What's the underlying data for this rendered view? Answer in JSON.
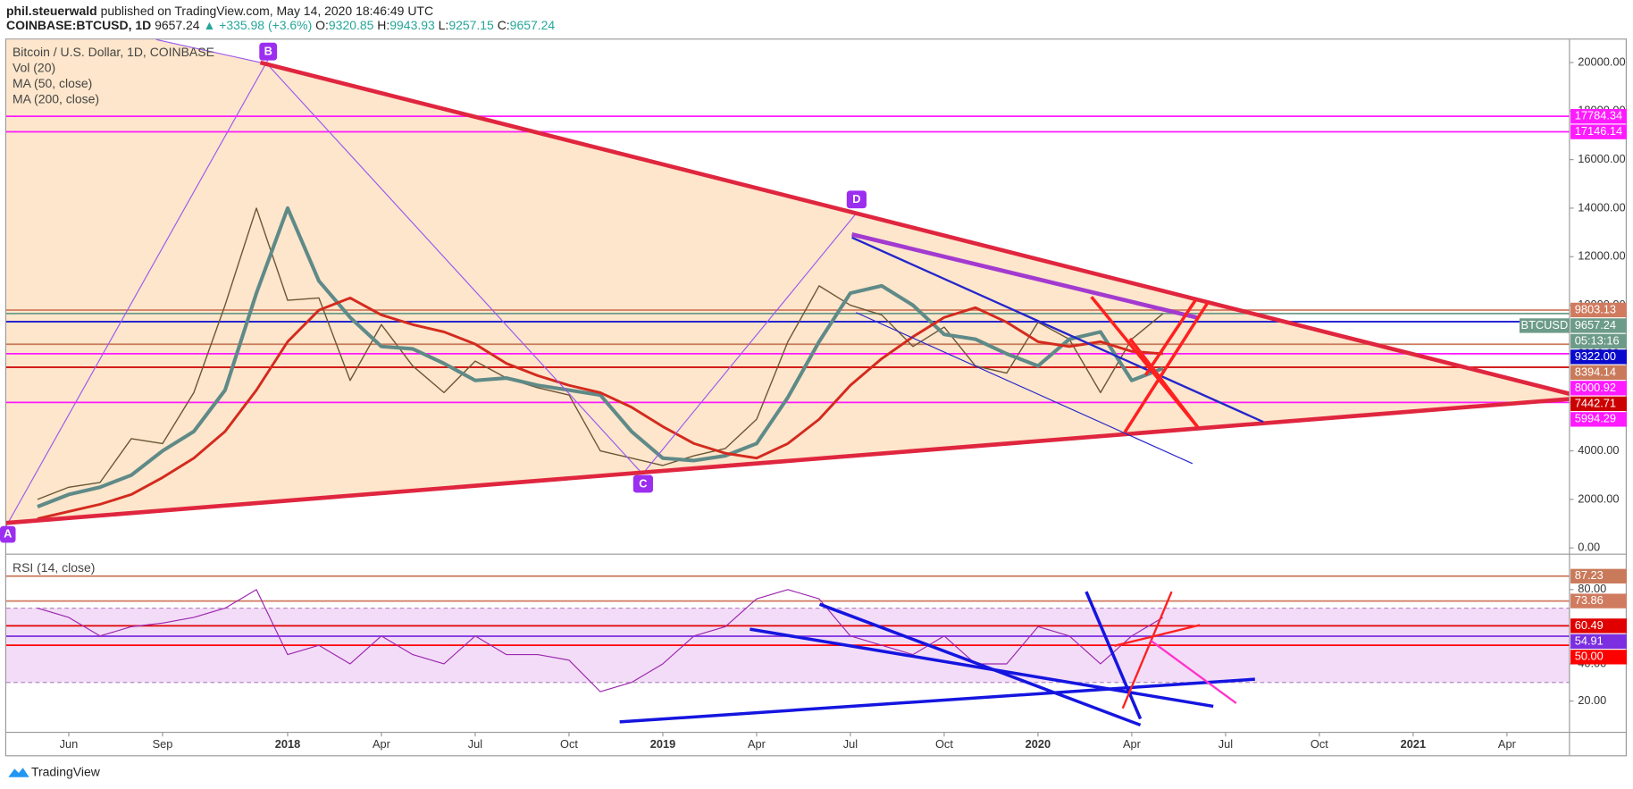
{
  "header": {
    "author": "phil.steuerwald",
    "published": "published on TradingView.com, May 14, 2020 18:46:49 UTC",
    "symbol": "COINBASE:BTCUSD, 1D",
    "last": "9657.24",
    "change_arrow": "▲",
    "change": "+335.98 (+3.6%)",
    "ohlc": [
      {
        "key": "O:",
        "value": "9320.85"
      },
      {
        "key": "H:",
        "value": "9943.93"
      },
      {
        "key": "L:",
        "value": "9257.15"
      },
      {
        "key": "C:",
        "value": "9657.24"
      }
    ]
  },
  "annotations": [
    "A",
    "B",
    "C",
    "D"
  ],
  "footer": {
    "brand": "TradingView"
  },
  "chart_data": [
    {
      "type": "line",
      "title": "Bitcoin / U.S. Dollar, 1D, COINBASE",
      "indicators": [
        "Vol (20)"
      ],
      "background": "#fde6cb",
      "grid": false,
      "x": [
        "2017-05",
        "2017-06",
        "2017-07",
        "2017-08",
        "2017-09",
        "2017-10",
        "2017-11",
        "2017-12",
        "2018-01",
        "2018-02",
        "2018-03",
        "2018-04",
        "2018-05",
        "2018-06",
        "2018-07",
        "2018-08",
        "2018-09",
        "2018-10",
        "2018-11",
        "2018-12",
        "2019-01",
        "2019-02",
        "2019-03",
        "2019-04",
        "2019-05",
        "2019-06",
        "2019-07",
        "2019-08",
        "2019-09",
        "2019-10",
        "2019-11",
        "2019-12",
        "2020-01",
        "2020-02",
        "2020-03",
        "2020-04",
        "2020-05"
      ],
      "xlim": [
        "2017-04",
        "2021-06"
      ],
      "ylim": [
        -215,
        20945
      ],
      "yticks": [
        {
          "value": 0,
          "label": "0.00"
        },
        {
          "value": 2000,
          "label": "2000.00"
        },
        {
          "value": 4000,
          "label": "4000.00"
        },
        {
          "value": 6000,
          "label": "6000.00"
        },
        {
          "value": 8000,
          "label": "8000.00"
        },
        {
          "value": 10000,
          "label": "10000.00"
        },
        {
          "value": 12000,
          "label": "12000.00"
        },
        {
          "value": 14000,
          "label": "14000.00"
        },
        {
          "value": 16000,
          "label": "16000.00"
        },
        {
          "value": 18000,
          "label": "18000.00"
        },
        {
          "value": 20000,
          "label": "20000.00"
        }
      ],
      "series": [
        {
          "color": "#6b5636",
          "width": 1.2,
          "values": [
            2000,
            2500,
            2700,
            4500,
            4300,
            6400,
            10000,
            14000,
            10200,
            10300,
            6900,
            9200,
            7500,
            6400,
            7700,
            7000,
            6600,
            6300,
            4000,
            3700,
            3400,
            3800,
            4100,
            5300,
            8500,
            10800,
            10000,
            9600,
            8300,
            9100,
            7500,
            7200,
            9300,
            8600,
            6400,
            8600,
            9657.24
          ]
        },
        {
          "name": "MA (50, close)",
          "color": "#5f8a88",
          "width": 3.5,
          "values": [
            1700,
            2200,
            2500,
            3000,
            4000,
            4800,
            6500,
            10500,
            14000,
            11000,
            9500,
            8300,
            8200,
            7600,
            6900,
            7000,
            6700,
            6500,
            6300,
            4800,
            3700,
            3600,
            3800,
            4300,
            6200,
            8500,
            10500,
            10800,
            10000,
            8800,
            8600,
            8000,
            7500,
            8600,
            8900,
            6900,
            7400
          ]
        },
        {
          "name": "MA (200, close)",
          "color": "#d42a1e",
          "width": 2.5,
          "values": [
            1200,
            1500,
            1800,
            2200,
            2900,
            3700,
            4800,
            6500,
            8500,
            9800,
            10300,
            9600,
            9200,
            8900,
            8400,
            7600,
            7100,
            6700,
            6400,
            5800,
            5000,
            4300,
            3900,
            3700,
            4300,
            5300,
            6700,
            7800,
            8700,
            9500,
            9900,
            9300,
            8500,
            8300,
            8500,
            8100,
            8000
          ]
        }
      ],
      "last_price": {
        "symbol": "BTCUSD",
        "countdown": "05:13:16"
      },
      "price_levels": [
        {
          "value": 17784.34,
          "label": "17784.34",
          "color": "#ff1aff"
        },
        {
          "value": 17146.14,
          "label": "17146.14",
          "color": "#ff1aff"
        },
        {
          "value": 9803.13,
          "label": "9803.13",
          "color": "#d07b5f"
        },
        {
          "value": 9657.24,
          "label": "9657.24",
          "color": "#6d9b8a"
        },
        {
          "value": 9322,
          "label": "9322.00",
          "color": "#0a0acc"
        },
        {
          "value": 8394.14,
          "label": "8394.14",
          "color": "#c97a5a"
        },
        {
          "value": 8000.92,
          "label": "8000.92",
          "color": "#ff1aff"
        },
        {
          "value": 7442.71,
          "label": "7442.71",
          "color": "#cc0000"
        },
        {
          "value": 5994.29,
          "label": "5994.29",
          "color": "#ff1aff"
        }
      ]
    },
    {
      "type": "line",
      "title": "RSI (14, close)",
      "grid": false,
      "band": [
        30,
        70
      ],
      "band_color": "#f3dcf7",
      "x": [
        "2017-05",
        "2017-06",
        "2017-07",
        "2017-08",
        "2017-09",
        "2017-10",
        "2017-11",
        "2017-12",
        "2018-01",
        "2018-02",
        "2018-03",
        "2018-04",
        "2018-05",
        "2018-06",
        "2018-07",
        "2018-08",
        "2018-09",
        "2018-10",
        "2018-11",
        "2018-12",
        "2019-01",
        "2019-02",
        "2019-03",
        "2019-04",
        "2019-05",
        "2019-06",
        "2019-07",
        "2019-08",
        "2019-09",
        "2019-10",
        "2019-11",
        "2019-12",
        "2020-01",
        "2020-02",
        "2020-03",
        "2020-04",
        "2020-05"
      ],
      "xlim": [
        "2017-04",
        "2021-06"
      ],
      "xticks": [
        {
          "value": "2017-06",
          "label": "Jun"
        },
        {
          "value": "2017-09",
          "label": "Sep"
        },
        {
          "value": "2018-01",
          "label": "2018"
        },
        {
          "value": "2018-04",
          "label": "Apr"
        },
        {
          "value": "2018-07",
          "label": "Jul"
        },
        {
          "value": "2018-10",
          "label": "Oct"
        },
        {
          "value": "2019-01",
          "label": "2019"
        },
        {
          "value": "2019-04",
          "label": "Apr"
        },
        {
          "value": "2019-07",
          "label": "Jul"
        },
        {
          "value": "2019-10",
          "label": "Oct"
        },
        {
          "value": "2020-01",
          "label": "2020"
        },
        {
          "value": "2020-04",
          "label": "Apr"
        },
        {
          "value": "2020-07",
          "label": "Jul"
        },
        {
          "value": "2020-10",
          "label": "Oct"
        },
        {
          "value": "2021-01",
          "label": "2021"
        },
        {
          "value": "2021-04",
          "label": "Apr"
        }
      ],
      "ylim": [
        3.7,
        98.5
      ],
      "yticks": [
        {
          "value": 20,
          "label": "20.00"
        },
        {
          "value": 40,
          "label": "40.00"
        },
        {
          "value": 80,
          "label": "80.00"
        }
      ],
      "series": [
        {
          "color": "#9c27b0",
          "width": 1,
          "values": [
            70,
            65,
            55,
            60,
            62,
            65,
            70,
            80,
            45,
            50,
            40,
            55,
            45,
            40,
            55,
            45,
            45,
            42,
            25,
            30,
            40,
            55,
            60,
            75,
            80,
            75,
            55,
            50,
            45,
            55,
            40,
            40,
            60,
            55,
            40,
            55,
            65
          ]
        }
      ],
      "price_levels": [
        {
          "value": 87.23,
          "label": "87.23",
          "color": "#c97a5a"
        },
        {
          "value": 73.86,
          "label": "73.86",
          "color": "#d07b5f"
        },
        {
          "value": 60.49,
          "label": "60.49",
          "color": "#e00000"
        },
        {
          "value": 54.91,
          "label": "54.91",
          "color": "#7b2fe0"
        },
        {
          "value": 50,
          "label": "50.00",
          "color": "#ff0000"
        }
      ]
    }
  ]
}
